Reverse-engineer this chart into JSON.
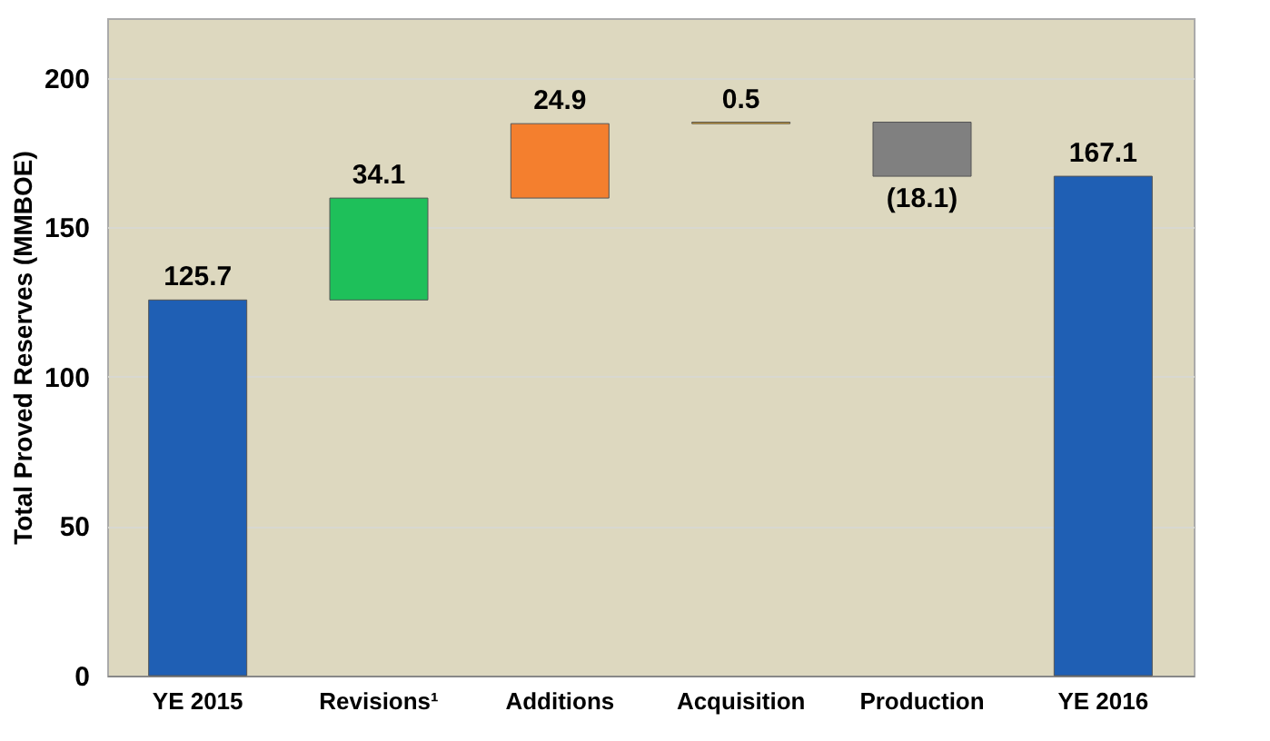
{
  "chart_data": {
    "type": "bar",
    "ylabel": "Total Proved Reserves (MMBOE)",
    "categories": [
      "YE 2015",
      "Revisions¹",
      "Additions",
      "Acquisition",
      "Production",
      "YE 2016"
    ],
    "values": [
      125.7,
      34.1,
      24.9,
      0.5,
      -18.1,
      167.1
    ],
    "base": [
      0,
      125.7,
      159.8,
      184.7,
      185.2,
      0
    ],
    "colors": [
      "#1f5fb4",
      "#1ec05a",
      "#f47f2e",
      "#f0b020",
      "#808080",
      "#1f5fb4"
    ],
    "value_labels": [
      "125.7",
      "34.1",
      "24.9",
      "0.5",
      "(18.1)",
      "167.1"
    ],
    "ylim": [
      0,
      220
    ],
    "yticks": [
      0,
      50,
      100,
      150,
      200
    ],
    "grid": "y",
    "legend": false
  }
}
